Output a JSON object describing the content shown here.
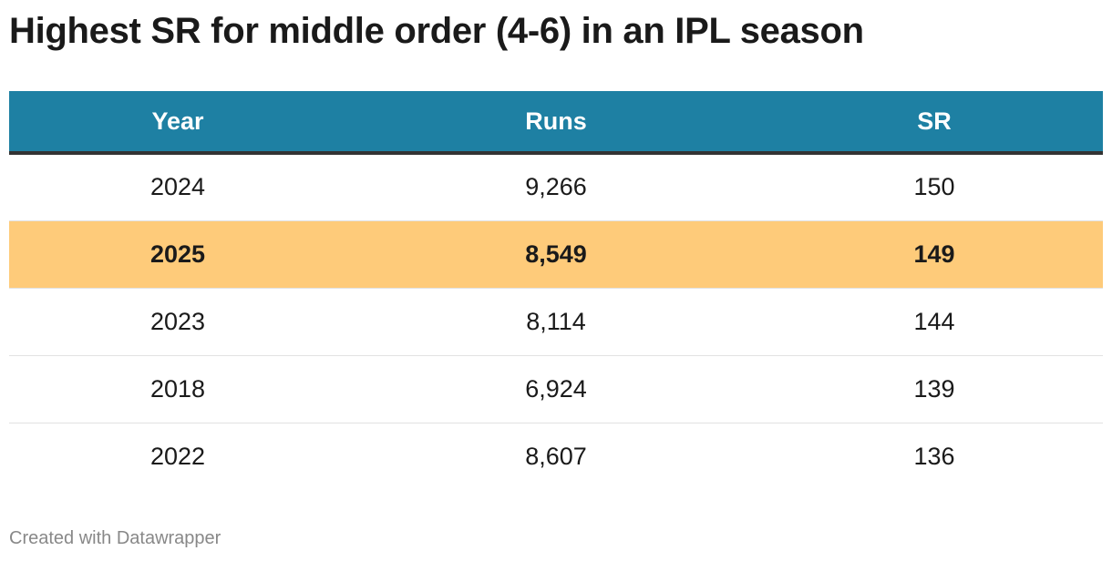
{
  "header": {
    "title": "Highest SR for middle order (4-6) in an IPL season"
  },
  "table": {
    "columns": [
      "Year",
      "Runs",
      "SR"
    ],
    "rows": [
      [
        "2024",
        "9,266",
        "150"
      ],
      [
        "2025",
        "8,549",
        "149"
      ],
      [
        "2023",
        "8,114",
        "144"
      ],
      [
        "2018",
        "6,924",
        "139"
      ],
      [
        "2022",
        "8,607",
        "136"
      ]
    ]
  },
  "footer": {
    "credit": "Created with Datawrapper"
  }
}
